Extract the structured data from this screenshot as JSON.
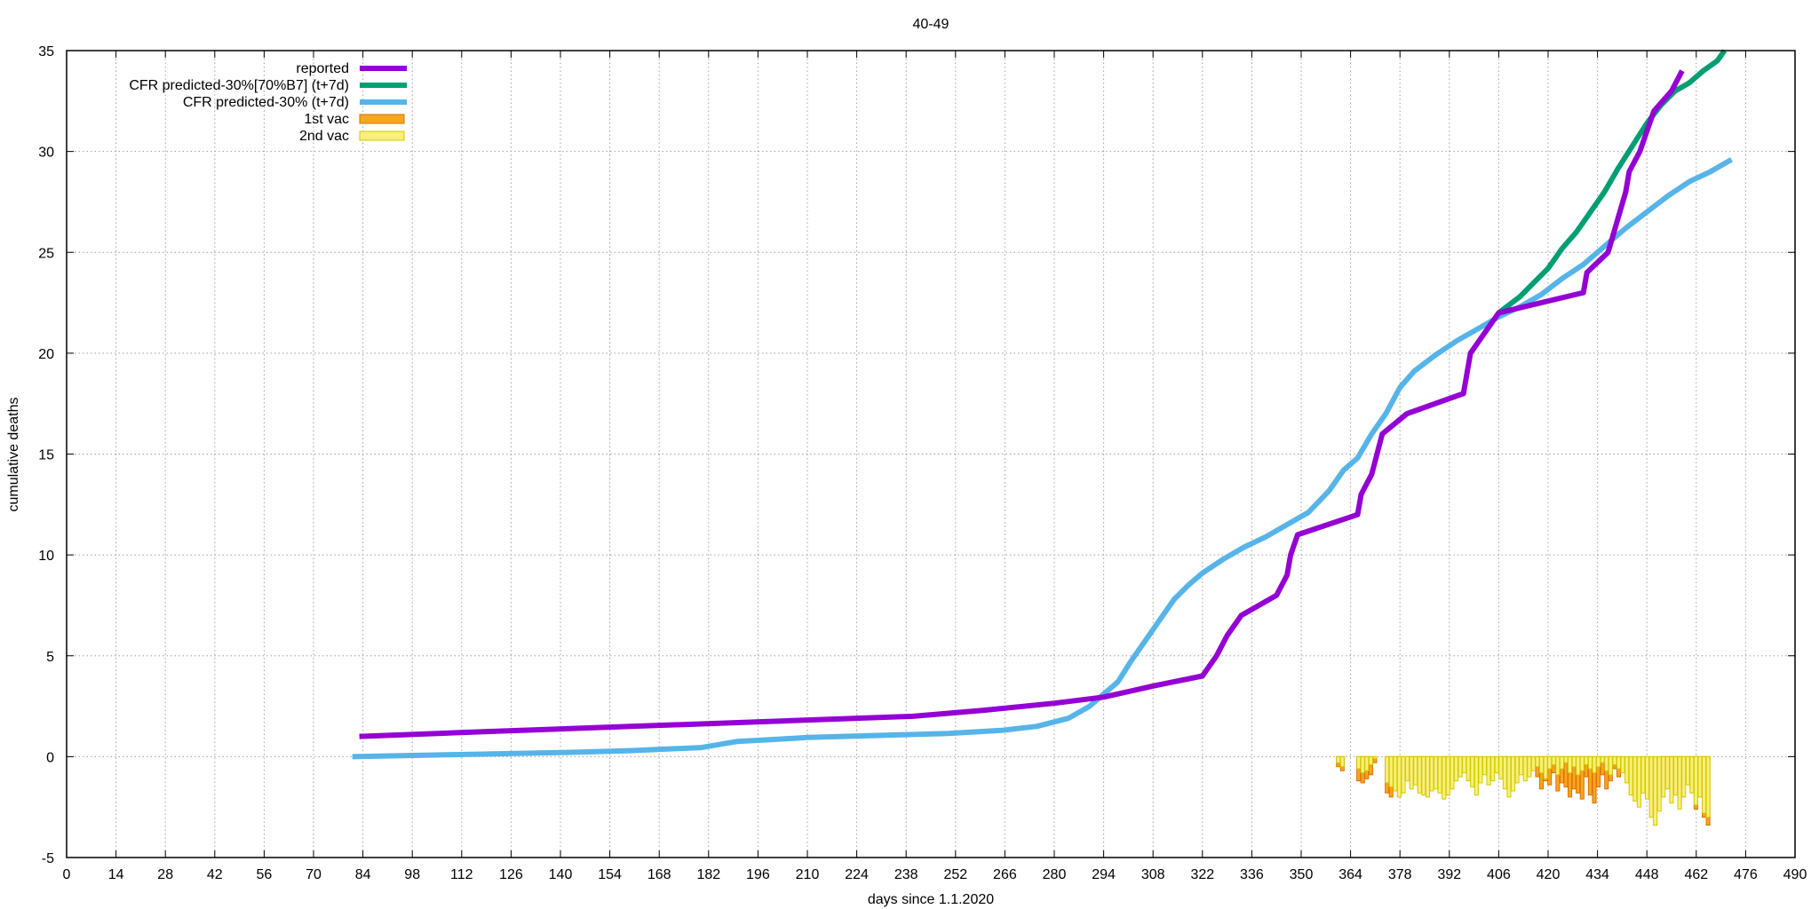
{
  "chart_data": {
    "type": "line",
    "title": "40-49",
    "xlabel": "days since 1.1.2020",
    "ylabel": "cumulative deaths",
    "xlim": [
      0,
      490
    ],
    "ylim": [
      -5,
      35
    ],
    "xticks": [
      0,
      14,
      28,
      42,
      56,
      70,
      84,
      98,
      112,
      126,
      140,
      154,
      168,
      182,
      196,
      210,
      224,
      238,
      252,
      266,
      280,
      294,
      308,
      322,
      336,
      350,
      364,
      378,
      392,
      406,
      420,
      434,
      448,
      462,
      476,
      490
    ],
    "yticks": [
      -5,
      0,
      5,
      10,
      15,
      20,
      25,
      30,
      35
    ],
    "grid": true,
    "legend_position": "top-left",
    "series": [
      {
        "name": "reported",
        "kind": "line",
        "color": "#9400d3",
        "points": [
          [
            83,
            1.0
          ],
          [
            120,
            1.25
          ],
          [
            160,
            1.5
          ],
          [
            200,
            1.75
          ],
          [
            240,
            2.0
          ],
          [
            260,
            2.3
          ],
          [
            280,
            2.65
          ],
          [
            294,
            2.95
          ],
          [
            308,
            3.5
          ],
          [
            322,
            4.0
          ],
          [
            326,
            5.0
          ],
          [
            329,
            6.0
          ],
          [
            333,
            7.0
          ],
          [
            343,
            8.0
          ],
          [
            346,
            9.0
          ],
          [
            347,
            10.0
          ],
          [
            349,
            11.0
          ],
          [
            366,
            12.0
          ],
          [
            367,
            13.0
          ],
          [
            370,
            14.0
          ],
          [
            373,
            16.0
          ],
          [
            380,
            17.0
          ],
          [
            396,
            18.0
          ],
          [
            398,
            20.0
          ],
          [
            402,
            21.0
          ],
          [
            406,
            22.0
          ],
          [
            430,
            23.0
          ],
          [
            431,
            24.0
          ],
          [
            437,
            25.0
          ],
          [
            442,
            28.0
          ],
          [
            443,
            29.0
          ],
          [
            446,
            30.0
          ],
          [
            450,
            32.0
          ],
          [
            455,
            33.0
          ],
          [
            458,
            34.0
          ]
        ]
      },
      {
        "name": "CFR predicted-30%[70%B7] (t+7d)",
        "kind": "line",
        "color": "#009e73",
        "points": [
          [
            406,
            22.0
          ],
          [
            412,
            22.8
          ],
          [
            416,
            23.5
          ],
          [
            420,
            24.2
          ],
          [
            424,
            25.2
          ],
          [
            428,
            26.0
          ],
          [
            432,
            27.0
          ],
          [
            436,
            28.0
          ],
          [
            440,
            29.2
          ],
          [
            444,
            30.3
          ],
          [
            448,
            31.4
          ],
          [
            452,
            32.3
          ],
          [
            456,
            33.0
          ],
          [
            460,
            33.4
          ],
          [
            464,
            34.0
          ],
          [
            468,
            34.5
          ],
          [
            470,
            35.0
          ]
        ]
      },
      {
        "name": "CFR predicted-30% (t+7d)",
        "kind": "line",
        "color": "#56b4e9",
        "points": [
          [
            81,
            0.0
          ],
          [
            110,
            0.1
          ],
          [
            140,
            0.2
          ],
          [
            160,
            0.3
          ],
          [
            180,
            0.45
          ],
          [
            190,
            0.75
          ],
          [
            200,
            0.85
          ],
          [
            210,
            0.95
          ],
          [
            230,
            1.05
          ],
          [
            250,
            1.15
          ],
          [
            265,
            1.3
          ],
          [
            275,
            1.5
          ],
          [
            284,
            1.9
          ],
          [
            290,
            2.5
          ],
          [
            294,
            3.1
          ],
          [
            298,
            3.7
          ],
          [
            302,
            4.8
          ],
          [
            306,
            5.8
          ],
          [
            310,
            6.8
          ],
          [
            314,
            7.8
          ],
          [
            318,
            8.5
          ],
          [
            322,
            9.1
          ],
          [
            328,
            9.8
          ],
          [
            334,
            10.4
          ],
          [
            340,
            10.9
          ],
          [
            346,
            11.5
          ],
          [
            352,
            12.1
          ],
          [
            358,
            13.2
          ],
          [
            362,
            14.2
          ],
          [
            366,
            14.8
          ],
          [
            370,
            16.0
          ],
          [
            374,
            17.0
          ],
          [
            378,
            18.3
          ],
          [
            382,
            19.1
          ],
          [
            388,
            19.9
          ],
          [
            394,
            20.6
          ],
          [
            400,
            21.2
          ],
          [
            406,
            21.8
          ],
          [
            412,
            22.3
          ],
          [
            418,
            22.9
          ],
          [
            424,
            23.7
          ],
          [
            430,
            24.4
          ],
          [
            436,
            25.3
          ],
          [
            442,
            26.2
          ],
          [
            448,
            27.0
          ],
          [
            454,
            27.8
          ],
          [
            460,
            28.5
          ],
          [
            466,
            29.0
          ],
          [
            472,
            29.6
          ]
        ]
      },
      {
        "name": "1st vac",
        "kind": "bar",
        "color": "#f5a623",
        "edge_color": "#e07000",
        "x_range": [
          360,
          466
        ],
        "values": [
          -0.5,
          -0.7,
          0,
          0,
          0,
          -1.2,
          -1.3,
          -1.1,
          -0.9,
          -0.3,
          0,
          0,
          -1.8,
          -2.0,
          -1.6,
          -1.9,
          -1.5,
          -0.4,
          -0.2,
          -1.0,
          -1.7,
          -1.4,
          -1.0,
          -0.5,
          0,
          0,
          -0.3,
          -0.6,
          -0.4,
          -0.2,
          0,
          0,
          0,
          -0.4,
          -0.2,
          0,
          0,
          0,
          0,
          0,
          -0.3,
          -0.5,
          0,
          0,
          0,
          -0.3,
          -0.6,
          -0.4,
          0,
          -1.0,
          -1.6,
          -1.2,
          -1.4,
          -0.8,
          -1.7,
          -1.3,
          -1.5,
          -2.0,
          -1.6,
          -1.8,
          -2.1,
          -1.0,
          -1.9,
          -2.3,
          -1.5,
          -0.9,
          -1.6,
          -1.2,
          -0.6,
          -1.0,
          0,
          0,
          0,
          0,
          0,
          0,
          0,
          0,
          0,
          0,
          -0.7,
          -1.2,
          -0.6,
          -0.4,
          -2.2,
          -1.4,
          -0.8,
          -1.6,
          -2.6,
          -1.2,
          -3.0,
          -3.4
        ]
      },
      {
        "name": "2nd vac",
        "kind": "bar",
        "color": "#f7f07a",
        "edge_color": "#d4c800",
        "x_range": [
          360,
          466
        ],
        "values": [
          -0.3,
          -0.5,
          0,
          0,
          0,
          -0.6,
          -0.8,
          -0.7,
          -0.4,
          -0.1,
          0,
          0,
          -1.3,
          -1.5,
          -1.7,
          -2.0,
          -1.8,
          -1.2,
          -1.6,
          -1.4,
          -1.8,
          -1.9,
          -2.0,
          -1.7,
          -1.6,
          -1.8,
          -2.1,
          -1.9,
          -1.6,
          -1.2,
          -1.0,
          -0.8,
          -1.2,
          -1.5,
          -1.9,
          -1.3,
          -0.9,
          -1.4,
          -1.2,
          -0.8,
          -1.1,
          -1.6,
          -2.0,
          -1.7,
          -1.3,
          -0.9,
          -1.2,
          -1.0,
          -0.7,
          -0.5,
          -0.8,
          -1.1,
          -0.6,
          -0.4,
          -0.9,
          -0.6,
          -0.3,
          -0.8,
          -0.5,
          -0.9,
          -0.7,
          -0.4,
          -0.6,
          -0.8,
          -0.5,
          -0.3,
          -0.7,
          -0.9,
          -0.4,
          -0.6,
          -0.8,
          -1.3,
          -1.9,
          -2.2,
          -2.5,
          -1.8,
          -2.1,
          -3.0,
          -3.4,
          -2.7,
          -2.0,
          -1.6,
          -2.3,
          -1.9,
          -2.6,
          -2.0,
          -1.4,
          -1.8,
          -2.4,
          -2.0,
          -2.8,
          -3.0
        ]
      }
    ]
  }
}
